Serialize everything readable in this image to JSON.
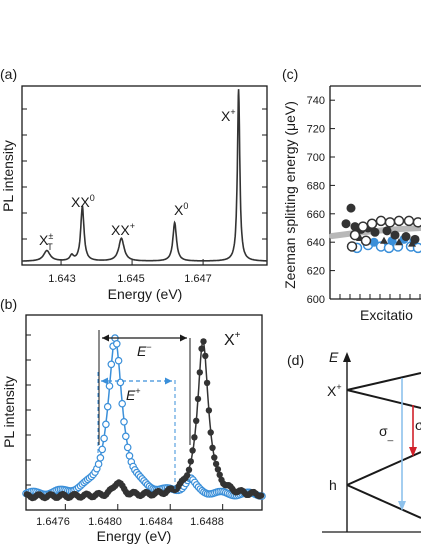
{
  "figure": {
    "panel_a": {
      "label": "(a)",
      "ylabel": "PL intensity",
      "xlabel": "Energy (eV)",
      "ticks": [
        "1.643",
        "1.645",
        "1.647"
      ],
      "peaks": {
        "XT_main": "X",
        "XT_sup": "±",
        "XT_sub": "T",
        "XX0_main": "XX",
        "XX0_sup": "0",
        "XXp_main": "XX",
        "XXp_sup": "+",
        "X0_main": "X",
        "X0_sup": "0",
        "Xp_main": "X",
        "Xp_sup": "+"
      }
    },
    "panel_b": {
      "label": "(b)",
      "ylabel": "PL intensity",
      "xlabel": "Energy (eV)",
      "ticks": [
        "1.6476",
        "1.6480",
        "1.6484",
        "1.6488"
      ],
      "title_main": "X",
      "title_sup": "+",
      "Em_main": "E",
      "Em_sup": "−",
      "Ep_main": "E",
      "Ep_sup": "+"
    },
    "panel_c": {
      "label": "(c)",
      "ylabel": "Zeeman splitting energy (μeV)",
      "xlabel": "Excitatio",
      "ticks": [
        "600",
        "620",
        "640",
        "660",
        "680",
        "700",
        "720",
        "740"
      ]
    },
    "panel_d": {
      "label": "(d)",
      "E_label": "E",
      "Xp_main": "X",
      "Xp_sup": "+",
      "h_label": "h",
      "sigma_main": "σ",
      "sigma_sub": "_",
      "sigma2": "σ"
    },
    "colors": {
      "black_series": "#333333",
      "blue_series": "#3a8fd9",
      "red_arrow": "#d0202a"
    }
  },
  "chart_data": [
    {
      "type": "line",
      "panel": "(a)",
      "xlabel": "Energy (eV)",
      "ylabel": "PL intensity",
      "xlim": [
        1.6419,
        1.6488
      ],
      "x_ticks": [
        1.643,
        1.645,
        1.647
      ],
      "peaks": [
        {
          "label": "X_T^±",
          "x": 1.6426,
          "height": 0.06
        },
        {
          "label": "XX^0",
          "x": 1.6436,
          "height": 0.31
        },
        {
          "label": "XX^+",
          "x": 1.6447,
          "height": 0.13
        },
        {
          "label": "X^0",
          "x": 1.6462,
          "height": 0.22
        },
        {
          "label": "X^+",
          "x": 1.648,
          "height": 0.98
        }
      ]
    },
    {
      "type": "scatter",
      "panel": "(b)",
      "xlabel": "Energy (eV)",
      "ylabel": "PL intensity",
      "xlim": [
        1.6473,
        1.6491
      ],
      "x_ticks": [
        1.6476,
        1.648,
        1.6484,
        1.6488
      ],
      "series": [
        {
          "color": "blue",
          "marker": "open circle",
          "main_peak": 1.64798,
          "side_peak": 1.64855
        },
        {
          "color": "black",
          "marker": "filled circle",
          "main_peak": 1.64865,
          "side_peak": 1.648
        }
      ]
    },
    {
      "type": "scatter",
      "panel": "(c)",
      "ylabel": "Zeeman splitting energy (μeV)",
      "ylim": [
        600,
        745
      ],
      "y_ticks": [
        600,
        620,
        640,
        660,
        680,
        700,
        720,
        740
      ]
    }
  ]
}
